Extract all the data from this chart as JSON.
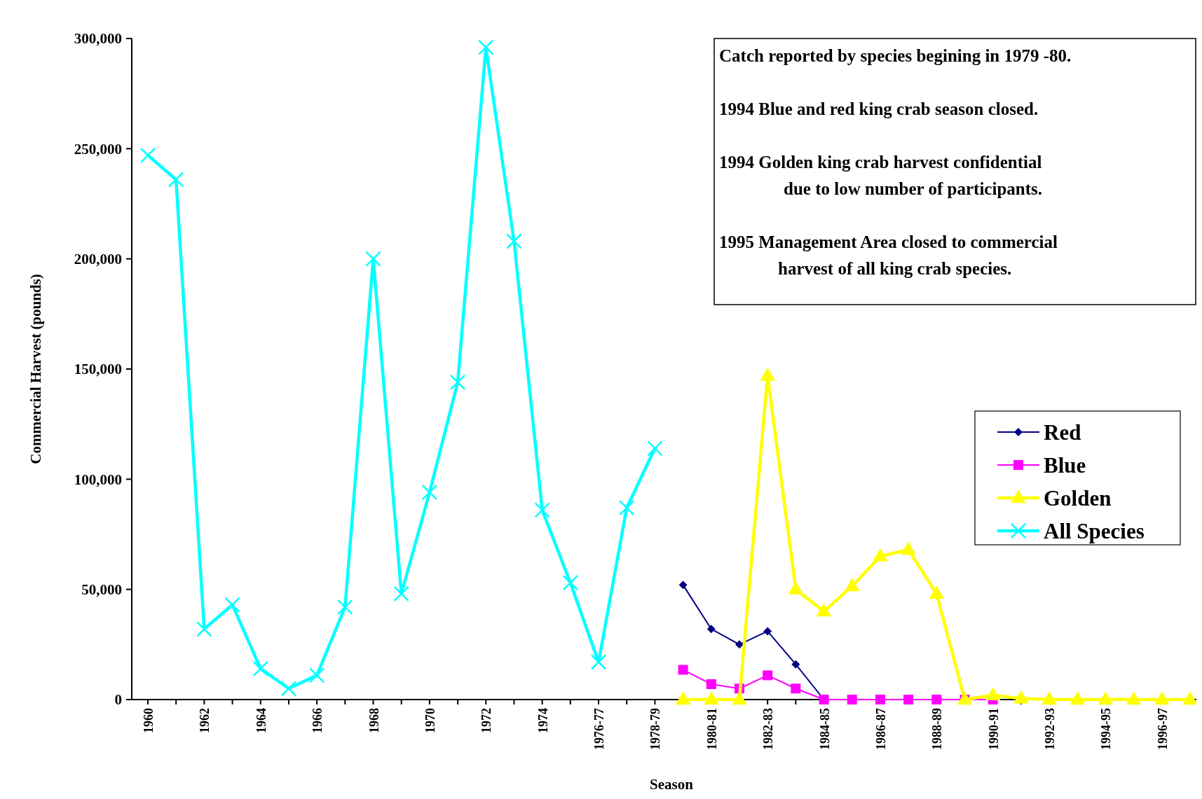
{
  "chart_data": {
    "type": "line",
    "xlabel": "Season",
    "ylabel": "Commercial Harvest (pounds)",
    "categories": [
      "1960",
      null,
      "1962",
      null,
      "1964",
      null,
      "1966",
      null,
      "1968",
      null,
      "1970",
      null,
      "1972",
      null,
      "1974",
      null,
      "1976-77",
      null,
      "1978-79",
      null,
      "1980-81",
      null,
      "1982-83",
      null,
      "1984-85",
      null,
      "1986-87",
      null,
      "1988-89",
      null,
      "1990-91",
      null,
      "1992-93",
      null,
      "1994-95",
      null,
      "1996-97",
      null
    ],
    "ylim": [
      0,
      300000
    ],
    "yticks": [
      {
        "value": 0,
        "label": "0"
      },
      {
        "value": 50000,
        "label": "50,000"
      },
      {
        "value": 100000,
        "label": "100,000"
      },
      {
        "value": 150000,
        "label": "150,000"
      },
      {
        "value": 200000,
        "label": "200,000"
      },
      {
        "value": 250000,
        "label": "250,000"
      },
      {
        "value": 300000,
        "label": "300,000"
      }
    ],
    "series": [
      {
        "name": "Red",
        "color": "#000080",
        "marker": "diamond",
        "values": [
          null,
          null,
          null,
          null,
          null,
          null,
          null,
          null,
          null,
          null,
          null,
          null,
          null,
          null,
          null,
          null,
          null,
          null,
          null,
          52000,
          32000,
          25000,
          31000,
          16000,
          0,
          0,
          null,
          null,
          null,
          null,
          null,
          null,
          null,
          null,
          null,
          null,
          null,
          null
        ]
      },
      {
        "name": "Blue",
        "color": "#ff00ff",
        "marker": "square",
        "values": [
          null,
          null,
          null,
          null,
          null,
          null,
          null,
          null,
          null,
          null,
          null,
          null,
          null,
          null,
          null,
          null,
          null,
          null,
          null,
          13500,
          7000,
          5000,
          11000,
          5000,
          0,
          0,
          0,
          0,
          0,
          0,
          0,
          null,
          null,
          null,
          null,
          null,
          null,
          null
        ]
      },
      {
        "name": "Golden",
        "color": "#ffff00",
        "marker": "triangle",
        "values": [
          null,
          null,
          null,
          null,
          null,
          null,
          null,
          null,
          null,
          null,
          null,
          null,
          null,
          null,
          null,
          null,
          null,
          null,
          null,
          0,
          0,
          0,
          147000,
          50000,
          40000,
          51500,
          65000,
          68000,
          48000,
          0,
          2000,
          500,
          0,
          0,
          0,
          0,
          0,
          0
        ]
      },
      {
        "name": "All Species",
        "color": "#00ffff",
        "marker": "cross",
        "values": [
          247000,
          236000,
          32000,
          43000,
          14000,
          5000,
          11000,
          42000,
          200000,
          48000,
          94000,
          144000,
          296000,
          208000,
          86000,
          53000,
          17000,
          87000,
          114000,
          null,
          null,
          null,
          null,
          null,
          null,
          null,
          null,
          null,
          null,
          null,
          null,
          null,
          null,
          null,
          null,
          null,
          null,
          null
        ]
      }
    ],
    "legend": "right",
    "grid": false,
    "annotations": [
      "Catch reported by species begining in 1979 -80.",
      "1994 Blue and red king crab season closed.",
      "1994 Golden king crab harvest confidential\n due to low number of participants.",
      "1995 Management Area closed to commercial\n harvest of all king crab species."
    ]
  }
}
